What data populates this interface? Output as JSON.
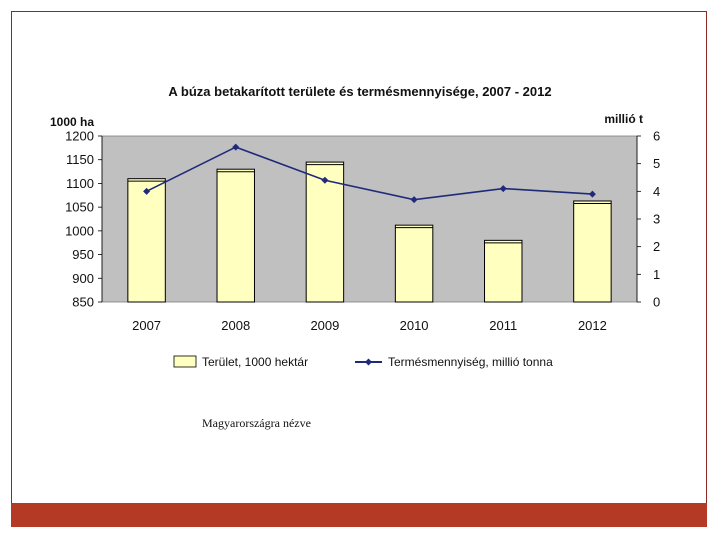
{
  "slide": {
    "caption": "Magyarországra nézve",
    "frame_color": "#8a2a22",
    "footer_color": "#b53a26"
  },
  "chart_data": {
    "type": "bar",
    "title": "A búza betakarított területe és termésmennyisége, 2007 - 2012",
    "categories": [
      "2007",
      "2008",
      "2009",
      "2010",
      "2011",
      "2012"
    ],
    "series": [
      {
        "name": "Terület, 1000 hektár",
        "type": "bar",
        "axis": "left",
        "values": [
          1110,
          1130,
          1145,
          1012,
          980,
          1063
        ],
        "color": "#ffffc0"
      },
      {
        "name": "Termésmennyiség, millió tonna",
        "type": "line",
        "axis": "right",
        "values": [
          4.0,
          5.6,
          4.4,
          3.7,
          4.1,
          3.9
        ],
        "color": "#1f2a7a"
      }
    ],
    "y_left": {
      "label": "1000 ha",
      "ylim": [
        850,
        1200
      ],
      "ticks": [
        850,
        900,
        950,
        1000,
        1050,
        1100,
        1150,
        1200
      ]
    },
    "y_right": {
      "label": "millió t",
      "ylim": [
        0,
        6
      ],
      "ticks": [
        0,
        1,
        2,
        3,
        4,
        5,
        6
      ]
    },
    "plot_background": "#c0c0c0",
    "legend_position": "bottom"
  }
}
